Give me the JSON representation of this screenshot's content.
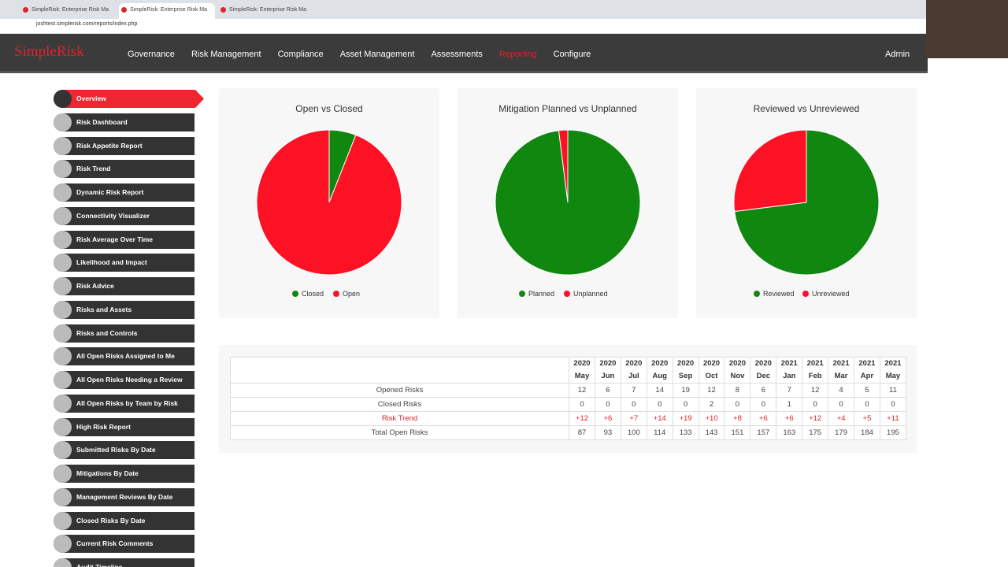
{
  "browser": {
    "tabs": [
      "SimpleRisk: Enterprise Risk Ma",
      "SimpleRisk: Enterprise Risk Ma",
      "SimpleRisk: Enterprise Risk Ma"
    ],
    "url": "joshtest.simplerisk.com/reports/index.php"
  },
  "header": {
    "logo": "SimpleRisk",
    "nav": [
      "Governance",
      "Risk Management",
      "Compliance",
      "Asset Management",
      "Assessments",
      "Reporting",
      "Configure"
    ],
    "user": "Admin"
  },
  "sidebar": {
    "items": [
      "Overview",
      "Risk Dashboard",
      "Risk Appetite Report",
      "Risk Trend",
      "Dynamic Risk Report",
      "Connectivity Visualizer",
      "Risk Average Over Time",
      "Likelihood and Impact",
      "Risk Advice",
      "Risks and Assets",
      "Risks and Controls",
      "All Open Risks Assigned to Me",
      "All Open Risks Needing a Review",
      "All Open Risks by Team by Risk Level",
      "High Risk Report",
      "Submitted Risks By Date",
      "Mitigations By Date",
      "Management Reviews By Date",
      "Closed Risks By Date",
      "Current Risk Comments",
      "Audit Timeline"
    ]
  },
  "chart_data": [
    {
      "type": "pie",
      "title": "Open vs Closed",
      "categories": [
        "Closed",
        "Open"
      ],
      "values": [
        6,
        94
      ],
      "colors": [
        "#10870f",
        "#fd1124"
      ]
    },
    {
      "type": "pie",
      "title": "Mitigation Planned vs Unplanned",
      "categories": [
        "Planned",
        "Unplanned"
      ],
      "values": [
        98,
        2
      ],
      "colors": [
        "#10870f",
        "#fd1124"
      ]
    },
    {
      "type": "pie",
      "title": "Reviewed vs Unreviewed",
      "categories": [
        "Reviewed",
        "Unreviewed"
      ],
      "values": [
        73,
        27
      ],
      "colors": [
        "#10870f",
        "#fd1124"
      ]
    }
  ],
  "table": {
    "years": [
      "2020",
      "2020",
      "2020",
      "2020",
      "2020",
      "2020",
      "2020",
      "2020",
      "2021",
      "2021",
      "2021",
      "2021",
      "2021"
    ],
    "months": [
      "May",
      "Jun",
      "Jul",
      "Aug",
      "Sep",
      "Oct",
      "Nov",
      "Dec",
      "Jan",
      "Feb",
      "Mar",
      "Apr",
      "May"
    ],
    "rows": [
      {
        "label": "Opened Risks",
        "values": [
          12,
          6,
          7,
          14,
          19,
          12,
          8,
          6,
          7,
          12,
          4,
          5,
          11
        ]
      },
      {
        "label": "Closed Risks",
        "values": [
          0,
          0,
          0,
          0,
          0,
          2,
          0,
          0,
          1,
          0,
          0,
          0,
          0
        ]
      },
      {
        "label": "Risk Trend",
        "values": [
          "+12",
          "+6",
          "+7",
          "+14",
          "+19",
          "+10",
          "+8",
          "+6",
          "+6",
          "+12",
          "+4",
          "+5",
          "+11"
        ]
      },
      {
        "label": "Total Open Risks",
        "values": [
          87,
          93,
          100,
          114,
          133,
          143,
          151,
          157,
          163,
          175,
          179,
          184,
          195
        ]
      }
    ]
  }
}
